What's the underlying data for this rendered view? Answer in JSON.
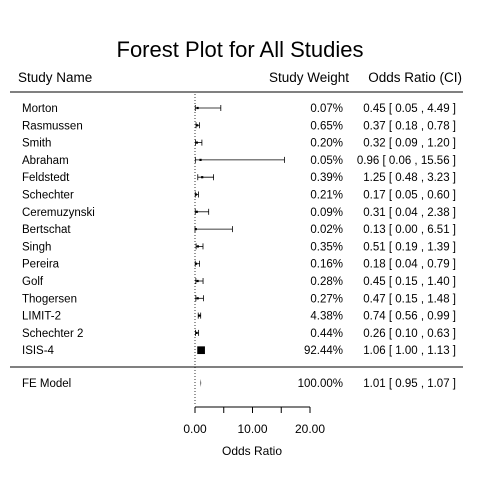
{
  "chart_data": {
    "type": "forest",
    "title": "Forest Plot for All Studies",
    "headers": {
      "study": "Study Name",
      "weight": "Study Weight",
      "or": "Odds Ratio (CI)"
    },
    "studies": [
      {
        "name": "Morton",
        "weight": "0.07%",
        "or": 0.45,
        "lo": 0.05,
        "hi": 4.49,
        "or_text": "0.45 [ 0.05 ,  4.49 ]"
      },
      {
        "name": "Rasmussen",
        "weight": "0.65%",
        "or": 0.37,
        "lo": 0.18,
        "hi": 0.78,
        "or_text": "0.37 [ 0.18 ,  0.78 ]"
      },
      {
        "name": "Smith",
        "weight": "0.20%",
        "or": 0.32,
        "lo": 0.09,
        "hi": 1.2,
        "or_text": "0.32 [ 0.09 ,  1.20 ]"
      },
      {
        "name": "Abraham",
        "weight": "0.05%",
        "or": 0.96,
        "lo": 0.06,
        "hi": 15.56,
        "or_text": "0.96 [ 0.06 , 15.56 ]"
      },
      {
        "name": "Feldstedt",
        "weight": "0.39%",
        "or": 1.25,
        "lo": 0.48,
        "hi": 3.23,
        "or_text": "1.25 [ 0.48 ,  3.23 ]"
      },
      {
        "name": "Schechter",
        "weight": "0.21%",
        "or": 0.17,
        "lo": 0.05,
        "hi": 0.6,
        "or_text": "0.17 [ 0.05 ,  0.60 ]"
      },
      {
        "name": "Ceremuzynski",
        "weight": "0.09%",
        "or": 0.31,
        "lo": 0.04,
        "hi": 2.38,
        "or_text": "0.31 [ 0.04 ,  2.38 ]"
      },
      {
        "name": "Bertschat",
        "weight": "0.02%",
        "or": 0.13,
        "lo": 0.0,
        "hi": 6.51,
        "or_text": "0.13 [ 0.00 ,  6.51 ]"
      },
      {
        "name": "Singh",
        "weight": "0.35%",
        "or": 0.51,
        "lo": 0.19,
        "hi": 1.39,
        "or_text": "0.51 [ 0.19 ,  1.39 ]"
      },
      {
        "name": "Pereira",
        "weight": "0.16%",
        "or": 0.18,
        "lo": 0.04,
        "hi": 0.79,
        "or_text": "0.18 [ 0.04 ,  0.79 ]"
      },
      {
        "name": "Golf",
        "weight": "0.28%",
        "or": 0.45,
        "lo": 0.15,
        "hi": 1.4,
        "or_text": "0.45 [ 0.15 ,  1.40 ]"
      },
      {
        "name": "Thogersen",
        "weight": "0.27%",
        "or": 0.47,
        "lo": 0.15,
        "hi": 1.48,
        "or_text": "0.47 [ 0.15 ,  1.48 ]"
      },
      {
        "name": "LIMIT-2",
        "weight": "4.38%",
        "or": 0.74,
        "lo": 0.56,
        "hi": 0.99,
        "or_text": "0.74 [ 0.56 ,  0.99 ]"
      },
      {
        "name": "Schechter 2",
        "weight": "0.44%",
        "or": 0.26,
        "lo": 0.1,
        "hi": 0.63,
        "or_text": "0.26 [ 0.10 ,  0.63 ]"
      },
      {
        "name": "ISIS-4",
        "weight": "92.44%",
        "or": 1.06,
        "lo": 1.0,
        "hi": 1.13,
        "or_text": "1.06 [ 1.00 ,  1.13 ]"
      }
    ],
    "summary": {
      "name": "FE Model",
      "weight": "100.00%",
      "or": 1.01,
      "lo": 0.95,
      "hi": 1.07,
      "or_text": "1.01 [ 0.95 ,  1.07 ]"
    },
    "xlabel": "Odds Ratio",
    "xlim": [
      0,
      20
    ],
    "ticks": [
      0,
      5,
      10,
      15,
      20
    ],
    "tick_labels": [
      "0.00",
      "",
      "10.00",
      "",
      "20.00"
    ],
    "reference_line": 0
  }
}
